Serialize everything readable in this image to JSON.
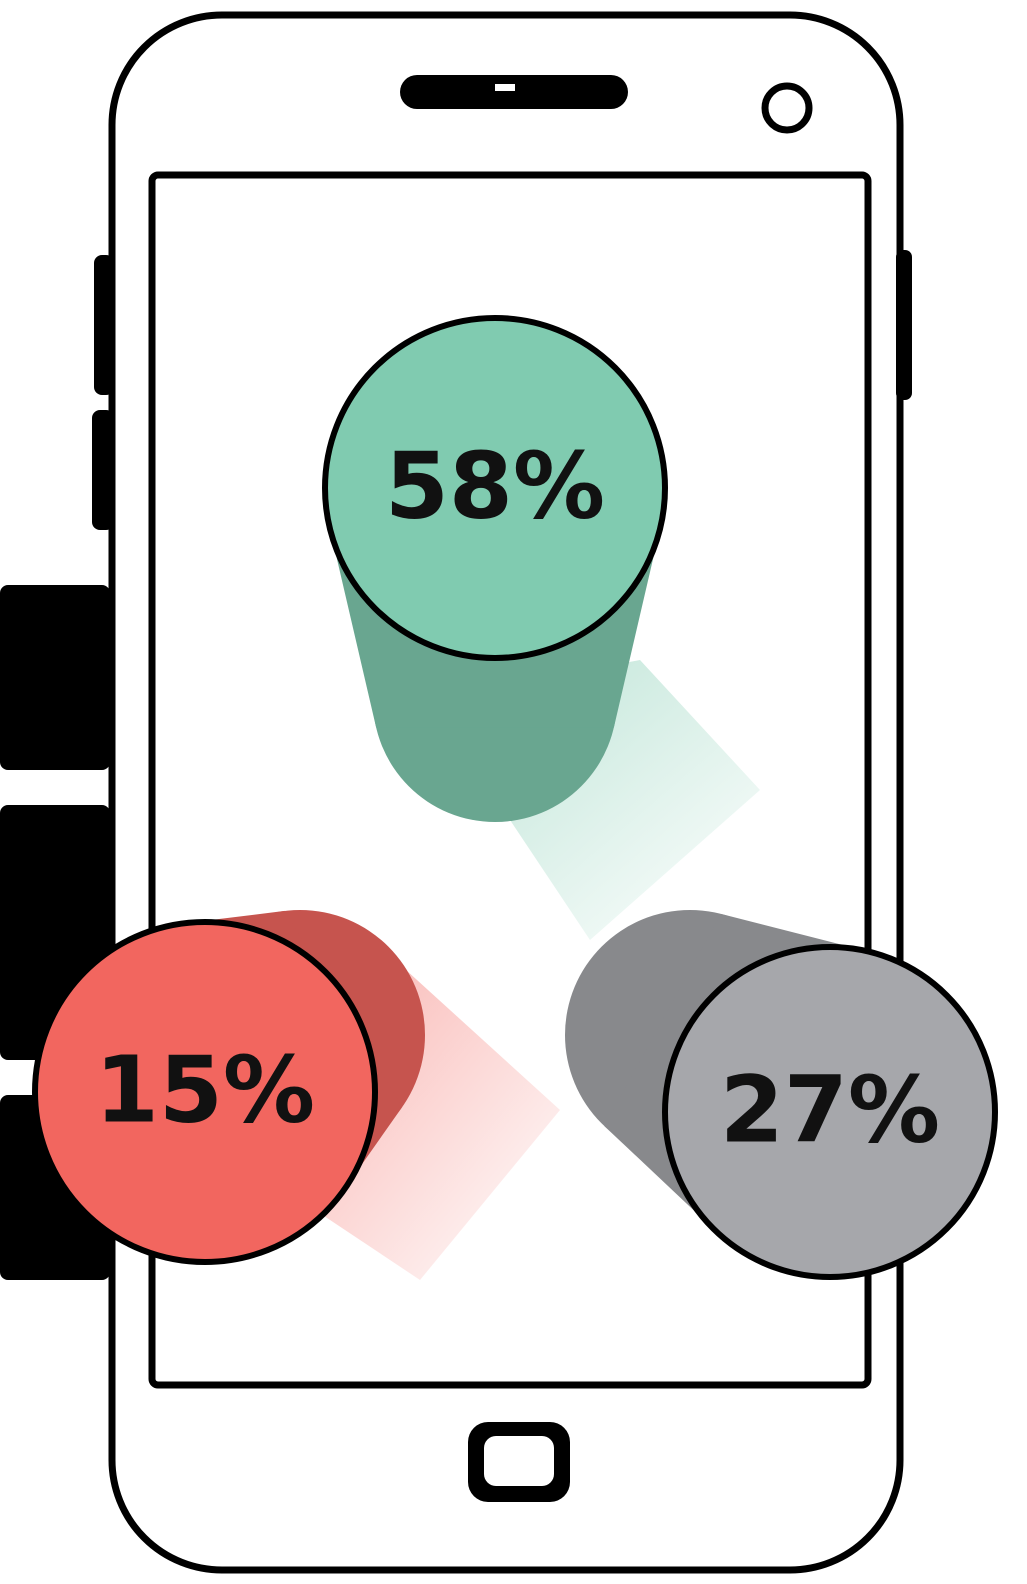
{
  "chart_data": {
    "type": "cylinder",
    "values": [
      58,
      15,
      27
    ],
    "value_labels": [
      "58%",
      "15%",
      "27%"
    ],
    "colors": [
      "#80cbb0",
      "#f2665f",
      "#a6a7ab"
    ]
  }
}
